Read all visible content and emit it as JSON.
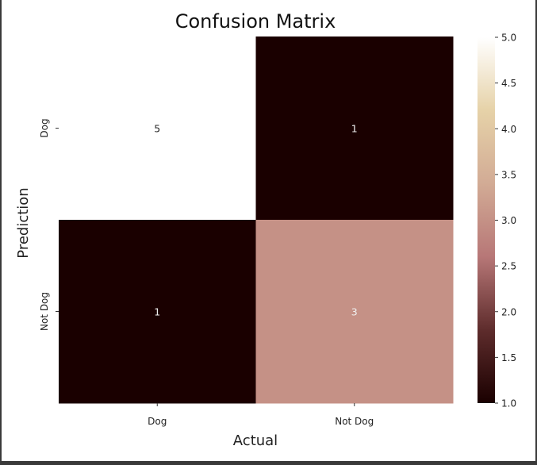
{
  "chart_data": {
    "type": "heatmap",
    "title": "Confusion Matrix",
    "xlabel": "Actual",
    "ylabel": "Prediction",
    "x_categories": [
      "Dog",
      "Not Dog"
    ],
    "y_categories": [
      "Dog",
      "Not Dog"
    ],
    "values": [
      [
        5,
        1
      ],
      [
        1,
        3
      ]
    ],
    "colorbar": {
      "min": 1.0,
      "max": 5.0,
      "ticks": [
        "1.0",
        "1.5",
        "2.0",
        "2.5",
        "3.0",
        "3.5",
        "4.0",
        "4.5",
        "5.0"
      ]
    },
    "colormap": [
      "#1a0000",
      "#5e2c2c",
      "#b77777",
      "#d2ab95",
      "#e6d2a8",
      "#ffffff"
    ]
  }
}
